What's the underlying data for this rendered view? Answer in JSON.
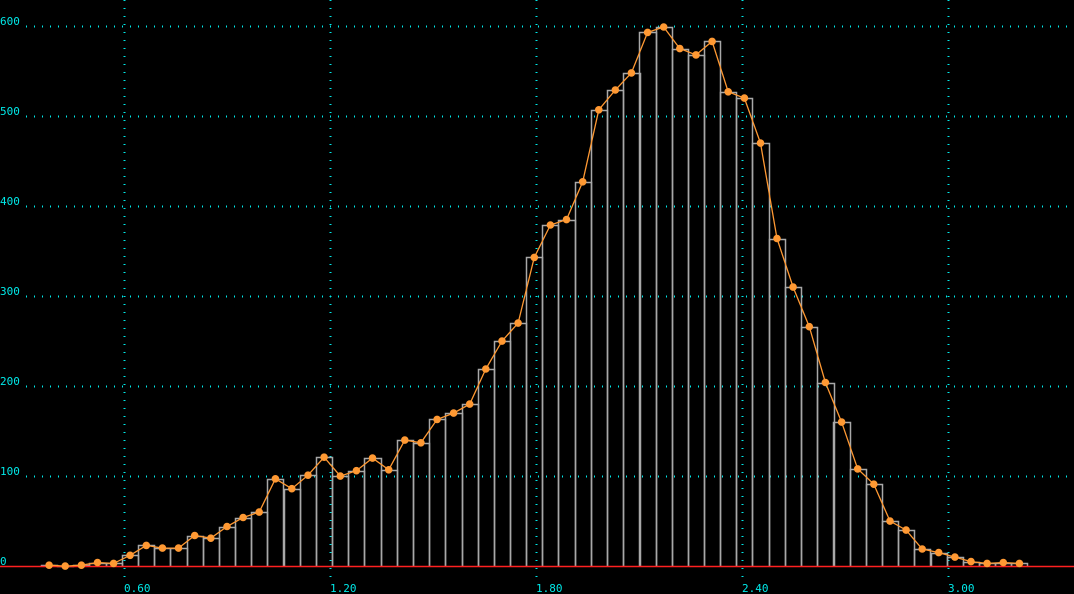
{
  "chart_data": {
    "type": "bar",
    "subtype": "histogram with overlaid line",
    "title": "",
    "xlabel": "",
    "ylabel": "",
    "xlim": [
      0.239,
      3.367
    ],
    "ylim": [
      -31,
      629
    ],
    "grid": true,
    "legend": "none",
    "bin_width": 0.0471,
    "x_ticks": [
      0.6,
      1.2,
      1.8,
      2.4,
      3.0
    ],
    "x_tick_labels": [
      "0.60",
      "1.20",
      "1.80",
      "2.40",
      "3.00"
    ],
    "y_ticks": [
      0,
      100,
      200,
      300,
      400,
      500,
      600
    ],
    "y_tick_labels": [
      "0",
      "100",
      "200",
      "300",
      "400",
      "500",
      "600"
    ],
    "x": [
      0.382,
      0.429,
      0.476,
      0.523,
      0.57,
      0.618,
      0.665,
      0.712,
      0.759,
      0.806,
      0.853,
      0.9,
      0.947,
      0.994,
      1.041,
      1.089,
      1.136,
      1.183,
      1.23,
      1.277,
      1.324,
      1.371,
      1.418,
      1.465,
      1.512,
      1.56,
      1.607,
      1.654,
      1.701,
      1.748,
      1.795,
      1.842,
      1.889,
      1.936,
      1.983,
      2.031,
      2.078,
      2.125,
      2.172,
      2.219,
      2.266,
      2.313,
      2.36,
      2.407,
      2.454,
      2.502,
      2.549,
      2.596,
      2.643,
      2.69,
      2.737,
      2.784,
      2.831,
      2.878,
      2.925,
      2.973,
      3.02,
      3.067,
      3.114,
      3.161,
      3.208
    ],
    "values": [
      1,
      0,
      1,
      4,
      3,
      12,
      23,
      20,
      20,
      34,
      31,
      44,
      54,
      60,
      97,
      86,
      101,
      121,
      100,
      106,
      120,
      107,
      140,
      137,
      163,
      170,
      180,
      219,
      250,
      270,
      343,
      379,
      385,
      427,
      507,
      529,
      548,
      593,
      599,
      575,
      568,
      583,
      527,
      520,
      470,
      364,
      310,
      266,
      204,
      160,
      108,
      91,
      50,
      40,
      19,
      15,
      10,
      5,
      3,
      4,
      3
    ],
    "colors": {
      "background": "#000000",
      "bar_outline": "#a8a8a8",
      "line": "#ff9933",
      "grid": "#00e8e8",
      "baseline": "#ff2020",
      "tick_label": "#00e8e8"
    }
  }
}
